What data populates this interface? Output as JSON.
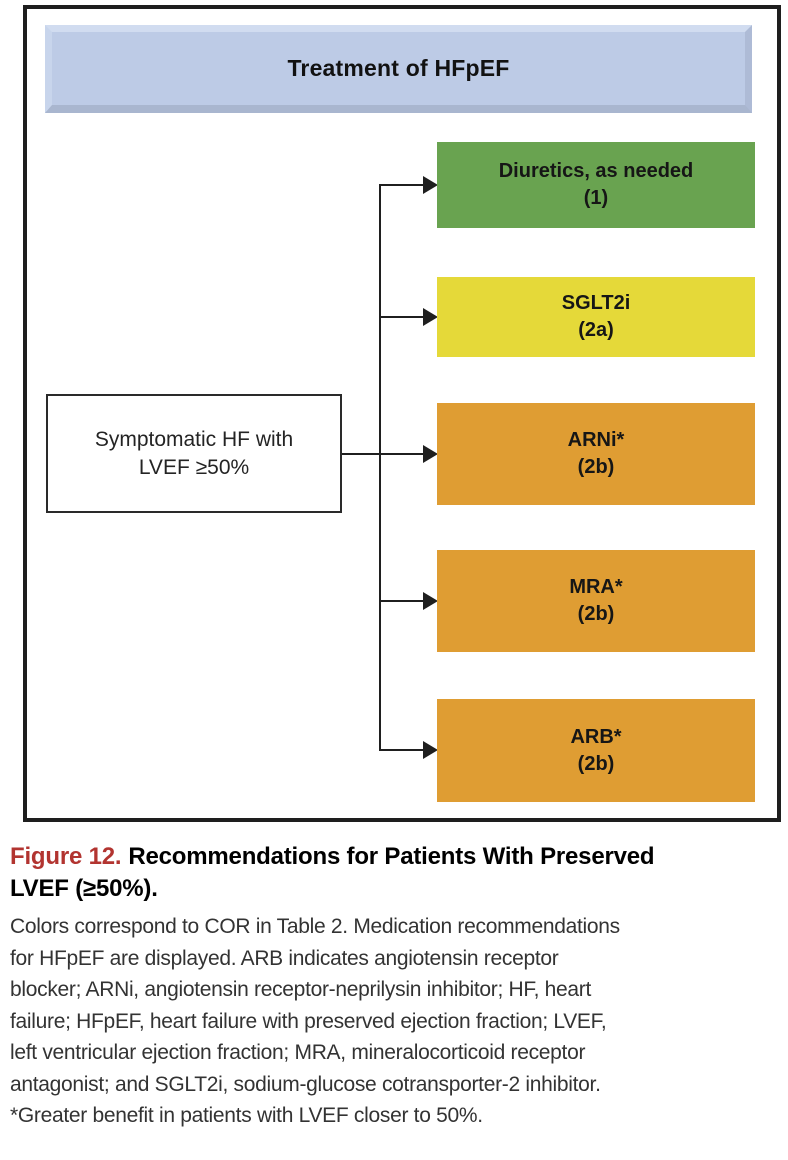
{
  "figure": {
    "header_title": "Treatment of HFpEF",
    "patient_box": {
      "line1": "Symptomatic HF with",
      "line2": "LVEF ≥50%"
    },
    "treatments": [
      {
        "name": "Diuretics, as needed",
        "cor": "(1)",
        "color": "#69a350"
      },
      {
        "name": "SGLT2i",
        "cor": "(2a)",
        "color": "#e5d939"
      },
      {
        "name": "ARNi*",
        "cor": "(2b)",
        "color": "#df9d33"
      },
      {
        "name": "MRA*",
        "cor": "(2b)",
        "color": "#df9d33"
      },
      {
        "name": "ARB*",
        "cor": "(2b)",
        "color": "#df9d33"
      }
    ]
  },
  "caption": {
    "figure_label": "Figure 12.",
    "title_line1": "Recommendations for Patients With Preserved",
    "title_line2": "LVEF (≥50%).",
    "body_lines": [
      "Colors correspond to COR in Table 2. Medication recommendations",
      "for HFpEF are displayed. ARB indicates angiotensin receptor",
      "blocker; ARNi, angiotensin receptor-neprilysin inhibitor; HF, heart",
      "failure; HFpEF, heart failure with preserved ejection fraction; LVEF,",
      "left ventricular ejection fraction; MRA, mineralocorticoid receptor",
      "antagonist; and SGLT2i, sodium-glucose cotransporter-2 inhibitor.",
      "*Greater benefit in patients with LVEF closer to 50%."
    ]
  },
  "colors": {
    "cor_1_green": "#69a350",
    "cor_2a_yellow": "#e5d939",
    "cor_2b_orange": "#df9d33",
    "header_blue": "#bdcbe6",
    "figure_label_red": "#b23430",
    "line_black": "#1f1f1f"
  }
}
